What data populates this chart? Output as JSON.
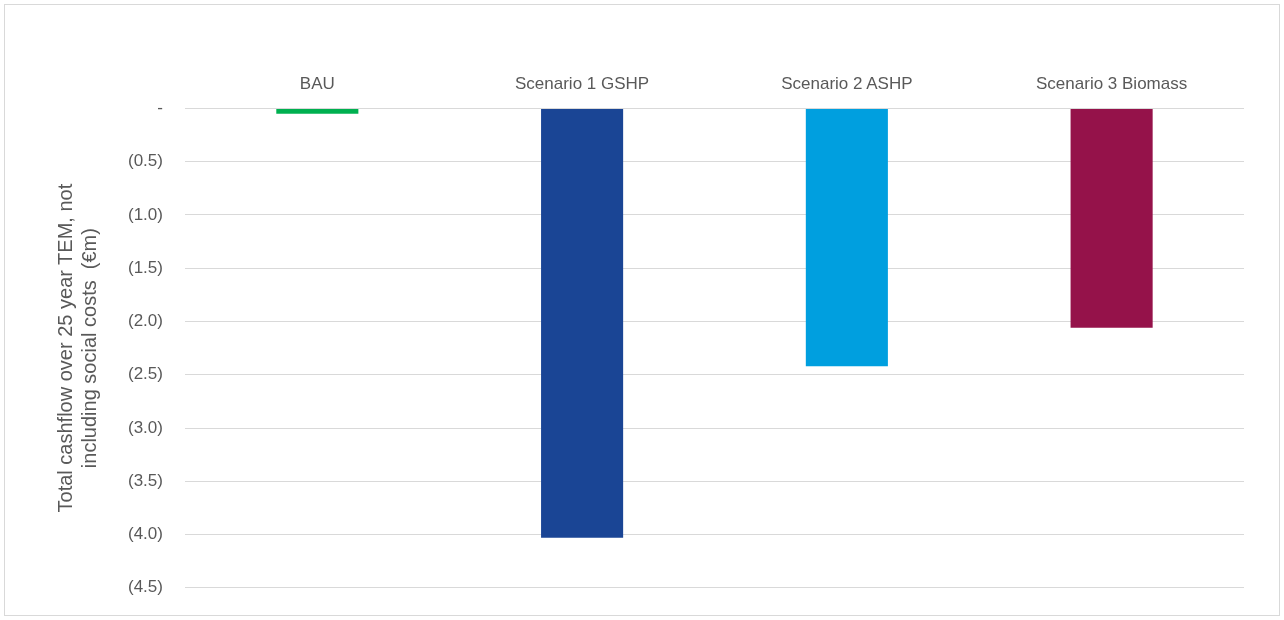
{
  "chart_data": {
    "type": "bar",
    "categories": [
      "BAU",
      "Scenario 1 GSHP",
      "Scenario 2 ASHP",
      "Scenario 3 Biomass"
    ],
    "values": [
      -0.05,
      -4.03,
      -2.42,
      -2.06
    ],
    "colors": [
      "#00b050",
      "#1a4595",
      "#009fdf",
      "#95124a"
    ],
    "ylabel": "Total cashflow over 25 year TEM, not\nincluding social costs  (€m)",
    "ylim": [
      -4.5,
      0
    ],
    "yticks": [
      {
        "value": 0,
        "label": "-"
      },
      {
        "value": -0.5,
        "label": "(0.5)"
      },
      {
        "value": -1,
        "label": "(1.0)"
      },
      {
        "value": -1.5,
        "label": "(1.5)"
      },
      {
        "value": -2,
        "label": "(2.0)"
      },
      {
        "value": -2.5,
        "label": "(2.5)"
      },
      {
        "value": -3,
        "label": "(3.0)"
      },
      {
        "value": -3.5,
        "label": "(3.5)"
      },
      {
        "value": -4,
        "label": "(4.0)"
      },
      {
        "value": -4.5,
        "label": "(4.5)"
      }
    ],
    "grid": "y",
    "legend": false
  }
}
